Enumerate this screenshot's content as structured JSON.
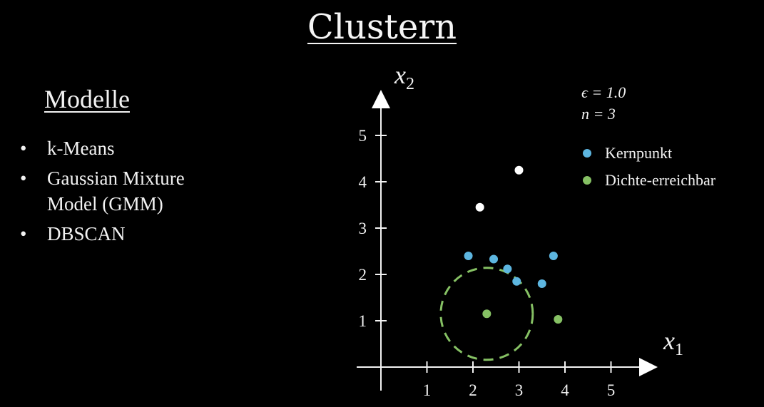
{
  "title": "Clustern",
  "models": {
    "heading": "Modelle",
    "items": [
      "k-Means",
      "Gaussian Mixture\nModel (GMM)",
      "DBSCAN"
    ]
  },
  "params": {
    "eps": "ϵ = 1.0",
    "n": "n = 3"
  },
  "legend": [
    {
      "label": "Kernpunkt",
      "color": "#5db6e0"
    },
    {
      "label": "Dichte-erreichbar",
      "color": "#86c164"
    }
  ],
  "chart_data": {
    "type": "scatter",
    "xlabel_var": "x",
    "xlabel_sub": "1",
    "ylabel_var": "x",
    "ylabel_sub": "2",
    "xticks": [
      1,
      2,
      3,
      4,
      5
    ],
    "yticks": [
      1,
      2,
      3,
      4,
      5
    ],
    "xlim": [
      0,
      5.8
    ],
    "ylim": [
      0,
      5.8
    ],
    "series": [
      {
        "name": "Kernpunkt",
        "color": "#5db6e0",
        "points": [
          [
            1.9,
            2.4
          ],
          [
            2.45,
            2.33
          ],
          [
            2.75,
            2.12
          ],
          [
            2.95,
            1.85
          ],
          [
            3.5,
            1.8
          ],
          [
            3.75,
            2.4
          ]
        ]
      },
      {
        "name": "Dichte-erreichbar",
        "color": "#86c164",
        "points": [
          [
            2.3,
            1.15
          ],
          [
            3.85,
            1.03
          ]
        ]
      },
      {
        "color": "#ffffff",
        "points": [
          [
            2.15,
            3.45
          ],
          [
            3.0,
            4.25
          ]
        ]
      }
    ],
    "circle": {
      "center": [
        2.3,
        1.15
      ],
      "radius": 1.0,
      "color": "#86c164"
    }
  }
}
